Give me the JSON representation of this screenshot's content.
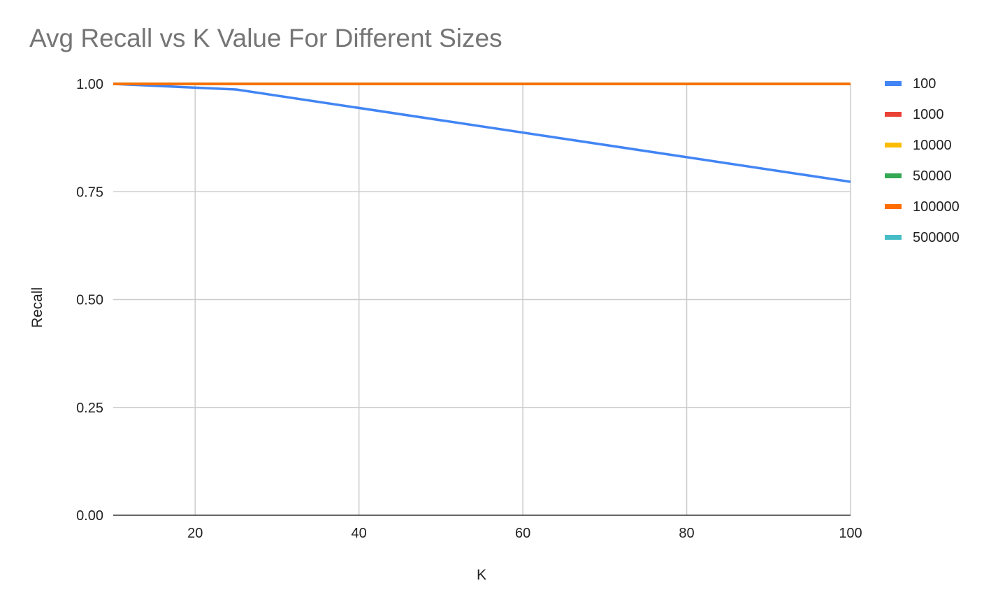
{
  "chart_data": {
    "type": "line",
    "title": "Avg Recall vs K Value For Different Sizes",
    "xlabel": "K",
    "ylabel": "Recall",
    "xlim": [
      10,
      100
    ],
    "ylim": [
      0,
      1
    ],
    "x_ticks": [
      20,
      40,
      60,
      80,
      100
    ],
    "x_tick_labels": [
      "20",
      "40",
      "60",
      "80",
      "100"
    ],
    "y_ticks": [
      0,
      0.25,
      0.5,
      0.75,
      1
    ],
    "y_tick_labels": [
      "0.00",
      "0.25",
      "0.50",
      "0.75",
      "1.00"
    ],
    "grid": true,
    "legend_position": "right",
    "series": [
      {
        "name": "100",
        "color": "#4285f4",
        "x": [
          10,
          25,
          100
        ],
        "values": [
          1.0,
          0.987,
          0.773
        ]
      },
      {
        "name": "1000",
        "color": "#ea4335",
        "x": [
          10,
          25,
          100
        ],
        "values": [
          1.0,
          1.0,
          1.0
        ]
      },
      {
        "name": "10000",
        "color": "#fbbc04",
        "x": [
          10,
          25,
          100
        ],
        "values": [
          1.0,
          1.0,
          1.0
        ]
      },
      {
        "name": "50000",
        "color": "#34a853",
        "x": [
          10,
          25,
          100
        ],
        "values": [
          1.0,
          1.0,
          1.0
        ]
      },
      {
        "name": "100000",
        "color": "#ff6d01",
        "x": [
          10,
          25,
          100
        ],
        "values": [
          1.0,
          1.0,
          1.0
        ]
      },
      {
        "name": "500000",
        "color": "#46bdc6",
        "x": [
          10
        ],
        "values": [
          1.0
        ]
      }
    ]
  }
}
